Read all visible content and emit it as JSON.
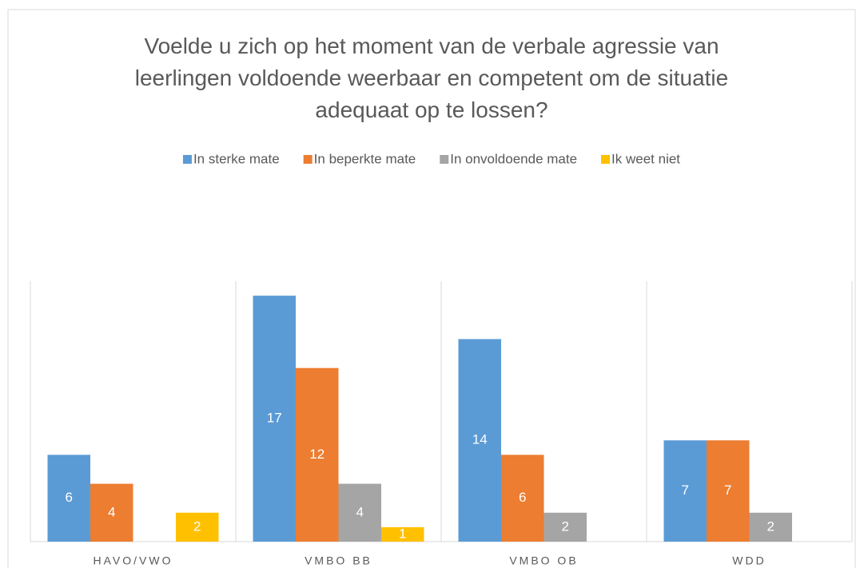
{
  "chart_data": {
    "type": "bar",
    "title": "Voelde u zich op het moment van de verbale agressie van leerlingen voldoende weerbaar en competent om de situatie adequaat op te lossen?",
    "categories": [
      "HAVO/VWO",
      "VMBO BB",
      "VMBO OB",
      "WDD"
    ],
    "series": [
      {
        "name": "In sterke mate",
        "color": "#5b9bd5",
        "values": [
          6,
          17,
          14,
          7
        ]
      },
      {
        "name": "In beperkte mate",
        "color": "#ed7d31",
        "values": [
          4,
          12,
          6,
          7
        ]
      },
      {
        "name": "In onvoldoende mate",
        "color": "#a5a5a5",
        "values": [
          null,
          4,
          2,
          2
        ]
      },
      {
        "name": "Ik weet niet",
        "color": "#ffc000",
        "values": [
          2,
          1,
          null,
          null
        ]
      }
    ],
    "ylim": [
      0,
      18
    ],
    "legend": "top"
  }
}
